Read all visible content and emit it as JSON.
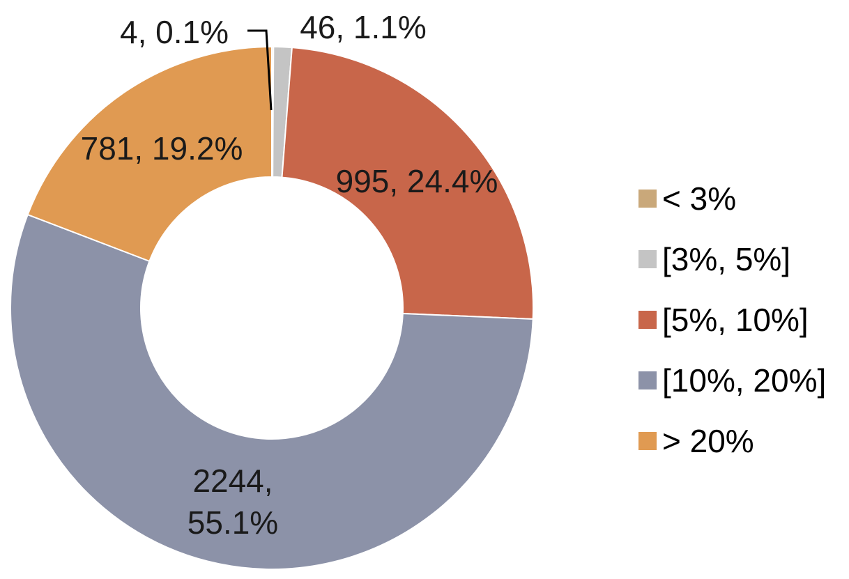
{
  "chart_data": {
    "type": "pie",
    "donut": true,
    "title": "",
    "series": [
      {
        "name": "< 3%",
        "value": 4,
        "percent": 0.1,
        "color": "#C9A87A",
        "label": "4, 0.1%"
      },
      {
        "name": "[3%, 5%]",
        "value": 46,
        "percent": 1.1,
        "color": "#C4C4C4",
        "label": "46, 1.1%"
      },
      {
        "name": "[5%, 10%]",
        "value": 995,
        "percent": 24.4,
        "color": "#C8664A",
        "label": "995, 24.4%"
      },
      {
        "name": "[10%, 20%]",
        "value": 2244,
        "percent": 55.1,
        "color": "#8C92A8",
        "label": "2244,\n55.1%"
      },
      {
        "name": "> 20%",
        "value": 781,
        "percent": 19.2,
        "color": "#E09A52",
        "label": "781, 19.2%"
      }
    ],
    "legend_position": "right"
  }
}
